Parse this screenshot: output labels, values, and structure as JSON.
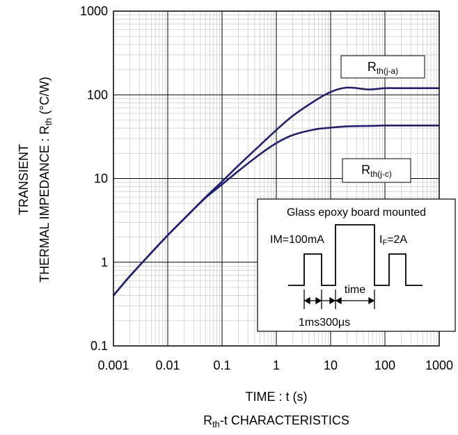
{
  "chart_data": {
    "type": "line",
    "x_scale": "log",
    "y_scale": "log",
    "xlim": [
      0.001,
      1000
    ],
    "ylim": [
      0.1,
      1000
    ],
    "x_ticks": [
      "0.001",
      "0.01",
      "0.1",
      "1",
      "10",
      "100",
      "1000"
    ],
    "y_ticks": [
      "0.1",
      "1",
      "10",
      "100",
      "1000"
    ],
    "xlabel": "TIME : t (s)",
    "ylabel_line1": "TRANSIENT",
    "ylabel_line2_main": "THERMAL IMPEDANCE : R",
    "ylabel_line2_sub": "th",
    "ylabel_line2_unit": " (°C/W)",
    "caption_main": "R",
    "caption_sub": "th",
    "caption_rest": "-t CHARACTERISTICS",
    "grid": true,
    "series": [
      {
        "name_main": "R",
        "name_sub": "th(j-a)",
        "x": [
          0.001,
          0.002,
          0.005,
          0.01,
          0.02,
          0.05,
          0.1,
          0.2,
          0.5,
          1,
          2,
          5,
          10,
          20,
          50,
          100,
          200,
          500,
          1000
        ],
        "y": [
          0.4,
          0.68,
          1.3,
          2.1,
          3.3,
          6.0,
          9.2,
          14.3,
          25,
          38,
          56,
          84,
          108,
          122,
          116,
          120,
          120,
          120,
          120
        ]
      },
      {
        "name_main": "R",
        "name_sub": "th(j-c)",
        "x": [
          0.001,
          0.002,
          0.005,
          0.01,
          0.02,
          0.05,
          0.1,
          0.2,
          0.5,
          1,
          2,
          5,
          10,
          20,
          50,
          100,
          200,
          500,
          1000
        ],
        "y": [
          0.4,
          0.68,
          1.3,
          2.1,
          3.3,
          5.9,
          8.5,
          12.3,
          19.5,
          26.5,
          33,
          38.5,
          40.5,
          42,
          42.5,
          43,
          43,
          43,
          43
        ]
      }
    ]
  },
  "inset": {
    "title": "Glass epoxy board mounted",
    "im_label": "IM=100mA",
    "if_main": "I",
    "if_sub": "F",
    "if_rest": "=2A",
    "time_label": "time",
    "timing_label": "1ms300μs"
  },
  "colors": {
    "curve": "#1f1f7a",
    "grid_major": "#000000",
    "grid_minor": "#c8c8c8",
    "frame": "#000000"
  }
}
